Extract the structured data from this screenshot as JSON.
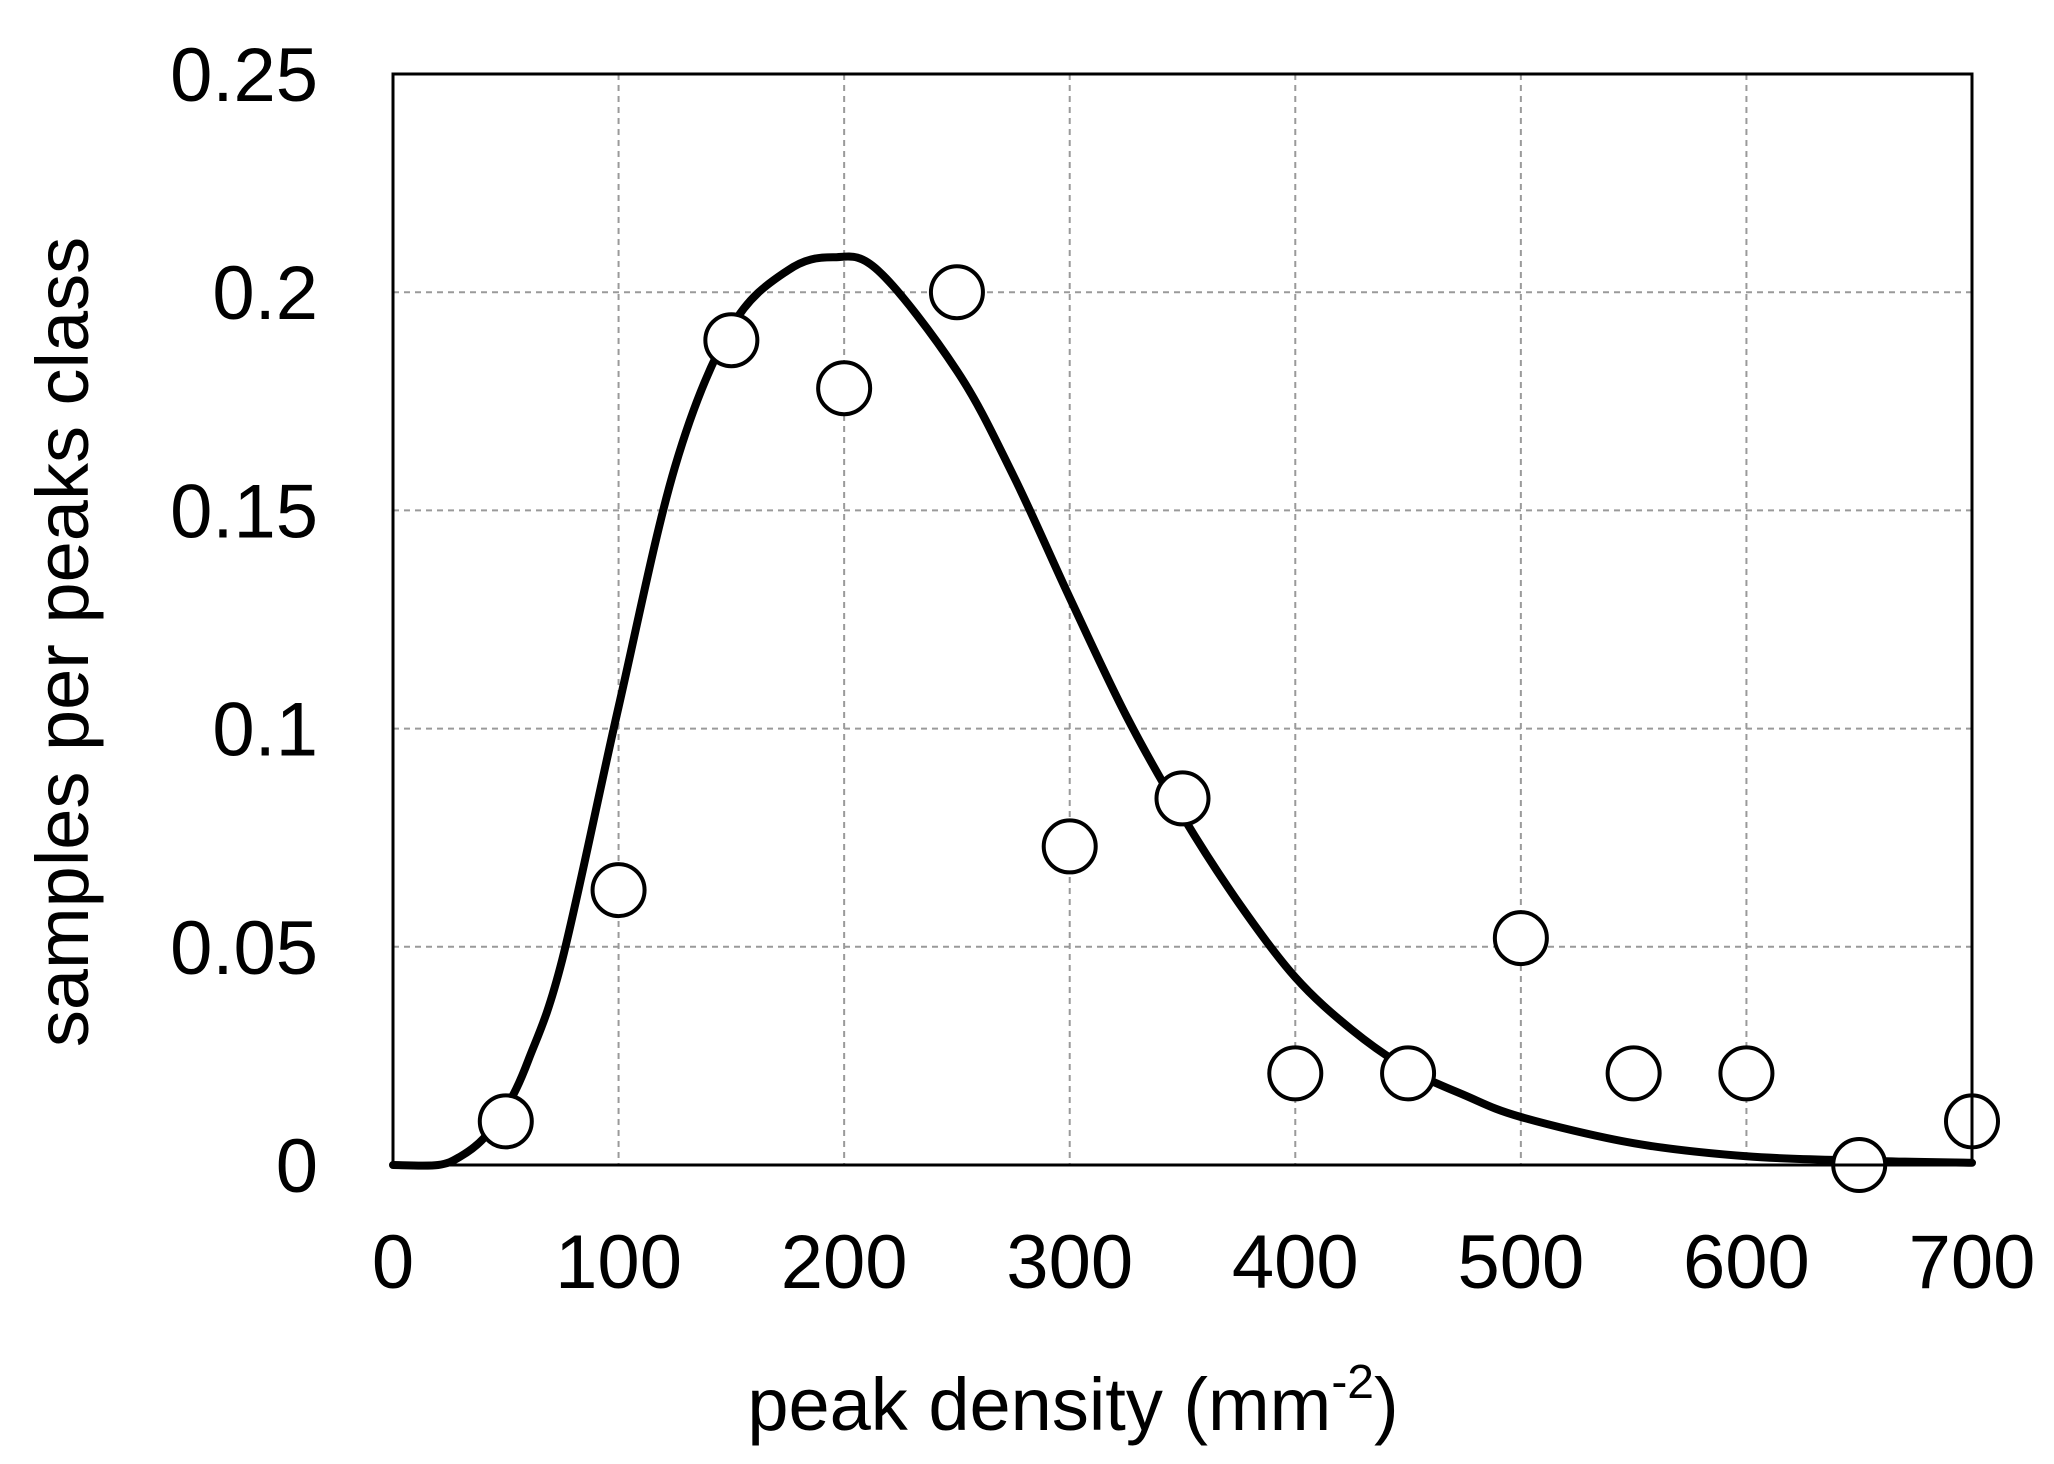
{
  "chart_data": {
    "type": "scatter",
    "title": "",
    "xlabel": "peak density (mm",
    "xlabel_superscript": "-2",
    "xlabel_suffix": ")",
    "ylabel": "samples per peaks class",
    "xlim": [
      0,
      700
    ],
    "ylim": [
      0,
      0.25
    ],
    "x_ticks": [
      0,
      100,
      200,
      300,
      400,
      500,
      600,
      700
    ],
    "x_tick_labels": [
      "0",
      "100",
      "200",
      "300",
      "400",
      "500",
      "600",
      "700"
    ],
    "y_ticks": [
      0,
      0.05,
      0.1,
      0.15,
      0.2,
      0.25
    ],
    "y_tick_labels": [
      "0",
      "0.05",
      "0.1",
      "0.15",
      "0.2",
      "0.25"
    ],
    "grid": true,
    "legend": "none",
    "series": [
      {
        "kind": "markers",
        "marker": "open-circle",
        "x": [
          50,
          100,
          150,
          200,
          250,
          300,
          350,
          400,
          450,
          500,
          550,
          600,
          650,
          700
        ],
        "y": [
          0.01,
          0.063,
          0.189,
          0.178,
          0.2,
          0.073,
          0.084,
          0.021,
          0.021,
          0.052,
          0.021,
          0.021,
          0.0,
          0.01
        ]
      },
      {
        "kind": "fit-line",
        "x": [
          0,
          20,
          30,
          40,
          50,
          60,
          75,
          100,
          125,
          150,
          175,
          195,
          215,
          250,
          275,
          300,
          325,
          350,
          375,
          400,
          425,
          450,
          475,
          500,
          550,
          600,
          650,
          700
        ],
        "y": [
          0,
          0.0,
          0.002,
          0.006,
          0.013,
          0.024,
          0.047,
          0.105,
          0.16,
          0.192,
          0.205,
          0.208,
          0.205,
          0.182,
          0.158,
          0.13,
          0.103,
          0.08,
          0.06,
          0.043,
          0.031,
          0.022,
          0.016,
          0.011,
          0.005,
          0.002,
          0.001,
          0.0005
        ]
      }
    ]
  }
}
